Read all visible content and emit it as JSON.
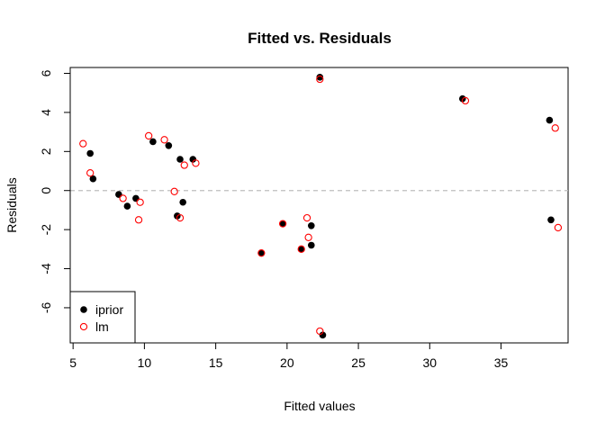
{
  "chart_data": {
    "type": "scatter",
    "title": "Fitted vs. Residuals",
    "xlabel": "Fitted values",
    "ylabel": "Residuals",
    "xlim": [
      4.8,
      39.7
    ],
    "ylim": [
      -7.8,
      6.3
    ],
    "x_ticks": [
      "5",
      "10",
      "15",
      "20",
      "25",
      "30",
      "35"
    ],
    "y_ticks": [
      "-6",
      "-4",
      "-2",
      "0",
      "2",
      "4",
      "6"
    ],
    "reference_line": {
      "y": 0,
      "style": "dashed",
      "color": "#bebebe"
    },
    "legend_position": "bottom-left",
    "series": [
      {
        "name": "iprior",
        "marker": "filled-circle",
        "color": "#000000",
        "points": [
          [
            6.2,
            1.9
          ],
          [
            6.4,
            0.6
          ],
          [
            8.2,
            -0.2
          ],
          [
            8.8,
            -0.8
          ],
          [
            9.4,
            -0.4
          ],
          [
            10.6,
            2.5
          ],
          [
            11.7,
            2.3
          ],
          [
            12.3,
            -1.3
          ],
          [
            12.5,
            1.6
          ],
          [
            12.7,
            -0.6
          ],
          [
            13.4,
            1.6
          ],
          [
            18.2,
            -3.2
          ],
          [
            19.7,
            -1.7
          ],
          [
            21.0,
            -3.0
          ],
          [
            21.7,
            -1.8
          ],
          [
            21.7,
            -2.8
          ],
          [
            22.3,
            5.8
          ],
          [
            22.5,
            -7.4
          ],
          [
            32.3,
            4.7
          ],
          [
            38.4,
            3.6
          ],
          [
            38.5,
            -1.5
          ]
        ]
      },
      {
        "name": "lm",
        "marker": "open-circle",
        "color": "#ff0000",
        "points": [
          [
            5.7,
            2.4
          ],
          [
            6.2,
            0.9
          ],
          [
            8.5,
            -0.4
          ],
          [
            9.6,
            -1.5
          ],
          [
            9.7,
            -0.6
          ],
          [
            10.3,
            2.8
          ],
          [
            11.4,
            2.6
          ],
          [
            12.1,
            -0.05
          ],
          [
            12.5,
            -1.4
          ],
          [
            12.8,
            1.3
          ],
          [
            13.6,
            1.4
          ],
          [
            18.2,
            -3.2
          ],
          [
            19.7,
            -1.7
          ],
          [
            21.0,
            -3.0
          ],
          [
            21.4,
            -1.4
          ],
          [
            21.5,
            -2.4
          ],
          [
            22.3,
            5.7
          ],
          [
            22.3,
            -7.2
          ],
          [
            32.5,
            4.6
          ],
          [
            38.8,
            3.2
          ],
          [
            39.0,
            -1.9
          ]
        ]
      }
    ]
  }
}
